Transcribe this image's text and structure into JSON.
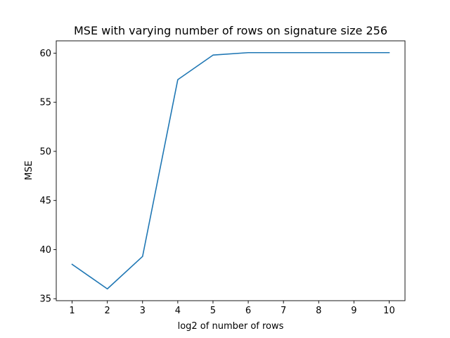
{
  "chart_data": {
    "type": "line",
    "title": "MSE with varying number of rows on signature size 256",
    "xlabel": "log2 of number of rows",
    "ylabel": "MSE",
    "x": [
      1,
      2,
      3,
      4,
      5,
      6,
      7,
      8,
      9,
      10
    ],
    "series": [
      {
        "values": [
          38.5,
          36.0,
          39.3,
          57.3,
          59.8,
          60.05,
          60.05,
          60.05,
          60.05,
          60.05
        ],
        "color": "#1f77b4"
      }
    ],
    "xlim": [
      0.55,
      10.45
    ],
    "ylim": [
      34.8,
      61.25
    ],
    "xticks": [
      1,
      2,
      3,
      4,
      5,
      6,
      7,
      8,
      9,
      10
    ],
    "yticks": [
      35,
      40,
      45,
      50,
      55,
      60
    ],
    "grid": false,
    "legend": "none"
  }
}
